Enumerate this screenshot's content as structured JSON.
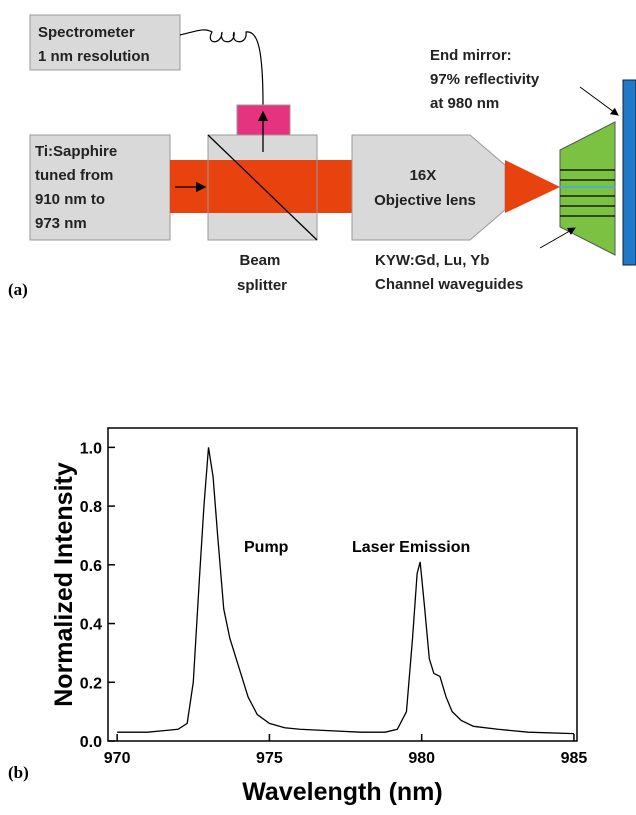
{
  "diagram": {
    "spectrometer": [
      "Spectrometer",
      "1 nm resolution"
    ],
    "laser": [
      "Ti:Sapphire",
      "tuned from",
      "910 nm to",
      "973 nm"
    ],
    "splitter": [
      "Beam",
      "splitter"
    ],
    "objective": [
      "16X",
      "Objective lens"
    ],
    "mirror": [
      "End mirror:",
      "97% reflectivity",
      "at 980 nm"
    ],
    "waveguides": [
      "KYW:Gd, Lu, Yb",
      "Channel waveguides"
    ],
    "panel_label": "(a)"
  },
  "chart_data": {
    "type": "line",
    "panel_label": "(b)",
    "x_label": "Wavelength (nm)",
    "y_label": "Normalized Intensity",
    "annotations": [
      "Pump",
      "Laser Emission"
    ],
    "color": "#000000",
    "x": [
      970,
      970.5,
      971,
      971.5,
      972,
      972.3,
      972.5,
      972.7,
      972.85,
      973,
      973.15,
      973.3,
      973.5,
      973.7,
      974,
      974.3,
      974.6,
      975,
      975.5,
      976,
      977,
      978,
      978.8,
      979.2,
      979.5,
      979.7,
      979.85,
      979.95,
      980.1,
      980.25,
      980.4,
      980.6,
      980.8,
      981,
      981.3,
      981.7,
      982.5,
      983.5,
      985
    ],
    "y": [
      0.03,
      0.03,
      0.03,
      0.035,
      0.04,
      0.06,
      0.2,
      0.55,
      0.8,
      1.0,
      0.9,
      0.7,
      0.45,
      0.35,
      0.25,
      0.15,
      0.09,
      0.06,
      0.045,
      0.04,
      0.035,
      0.03,
      0.03,
      0.04,
      0.1,
      0.35,
      0.57,
      0.61,
      0.45,
      0.28,
      0.23,
      0.22,
      0.15,
      0.1,
      0.07,
      0.05,
      0.04,
      0.03,
      0.025
    ],
    "xlim": [
      969.7,
      985.1
    ],
    "ylim": [
      0,
      1.066
    ],
    "xticks": [
      970,
      975,
      980,
      985
    ],
    "yticks": [
      {
        "value": 0,
        "label": "0.0"
      },
      0.2,
      0.4,
      0.6,
      0.8,
      {
        "value": 1,
        "label": "1.0"
      }
    ]
  }
}
